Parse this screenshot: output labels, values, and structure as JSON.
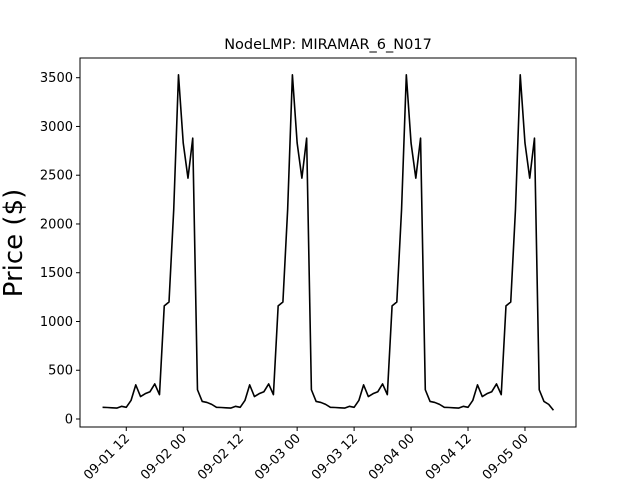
{
  "chart_data": {
    "type": "line",
    "title": "NodeLMP: MIRAMAR_6_N017",
    "y_label": "Price ($)",
    "color": "#000000",
    "x": [
      "09-01 07",
      "09-01 08",
      "09-01 09",
      "09-01 10",
      "09-01 11",
      "09-01 12",
      "09-01 13",
      "09-01 14",
      "09-01 15",
      "09-01 16",
      "09-01 17",
      "09-01 18",
      "09-01 19",
      "09-01 20",
      "09-01 21",
      "09-01 22",
      "09-01 23",
      "09-02 00",
      "09-02 01",
      "09-02 02",
      "09-02 03",
      "09-02 04",
      "09-02 05",
      "09-02 06",
      "09-02 07",
      "09-02 08",
      "09-02 09",
      "09-02 10",
      "09-02 11",
      "09-02 12",
      "09-02 13",
      "09-02 14",
      "09-02 15",
      "09-02 16",
      "09-02 17",
      "09-02 18",
      "09-02 19",
      "09-02 20",
      "09-02 21",
      "09-02 22",
      "09-02 23",
      "09-03 00",
      "09-03 01",
      "09-03 02",
      "09-03 03",
      "09-03 04",
      "09-03 05",
      "09-03 06",
      "09-03 07",
      "09-03 08",
      "09-03 09",
      "09-03 10",
      "09-03 11",
      "09-03 12",
      "09-03 13",
      "09-03 14",
      "09-03 15",
      "09-03 16",
      "09-03 17",
      "09-03 18",
      "09-03 19",
      "09-03 20",
      "09-03 21",
      "09-03 22",
      "09-03 23",
      "09-04 00",
      "09-04 01",
      "09-04 02",
      "09-04 03",
      "09-04 04",
      "09-04 05",
      "09-04 06",
      "09-04 07",
      "09-04 08",
      "09-04 09",
      "09-04 10",
      "09-04 11",
      "09-04 12",
      "09-04 13",
      "09-04 14",
      "09-04 15",
      "09-04 16",
      "09-04 17",
      "09-04 18",
      "09-04 19",
      "09-04 20",
      "09-04 21",
      "09-04 22",
      "09-04 23",
      "09-05 00",
      "09-05 01",
      "09-05 02",
      "09-05 03",
      "09-05 04",
      "09-05 05",
      "09-05 06"
    ],
    "values": [
      120,
      118,
      115,
      112,
      130,
      120,
      190,
      350,
      230,
      260,
      280,
      360,
      250,
      1160,
      1200,
      2150,
      3530,
      2830,
      2470,
      2880,
      300,
      180,
      170,
      150,
      120,
      118,
      115,
      112,
      130,
      120,
      190,
      350,
      230,
      260,
      280,
      360,
      250,
      1160,
      1200,
      2150,
      3530,
      2830,
      2470,
      2880,
      300,
      180,
      170,
      150,
      120,
      118,
      115,
      112,
      130,
      120,
      190,
      350,
      230,
      260,
      280,
      360,
      250,
      1160,
      1200,
      2150,
      3530,
      2830,
      2470,
      2880,
      300,
      180,
      170,
      150,
      120,
      118,
      115,
      112,
      130,
      120,
      190,
      350,
      230,
      260,
      280,
      360,
      250,
      1160,
      1200,
      2150,
      3530,
      2830,
      2470,
      2880,
      300,
      180,
      150,
      90
    ],
    "xlim": [
      "09-01 02:15",
      "09-05 10:45"
    ],
    "xticks": [
      "09-01 12",
      "09-02 00",
      "09-02 12",
      "09-03 00",
      "09-03 12",
      "09-04 00",
      "09-04 12",
      "09-05 00"
    ],
    "ylim": [
      -82,
      3702
    ],
    "yticks": [
      0,
      500,
      1000,
      1500,
      2000,
      2500,
      3000,
      3500
    ]
  }
}
